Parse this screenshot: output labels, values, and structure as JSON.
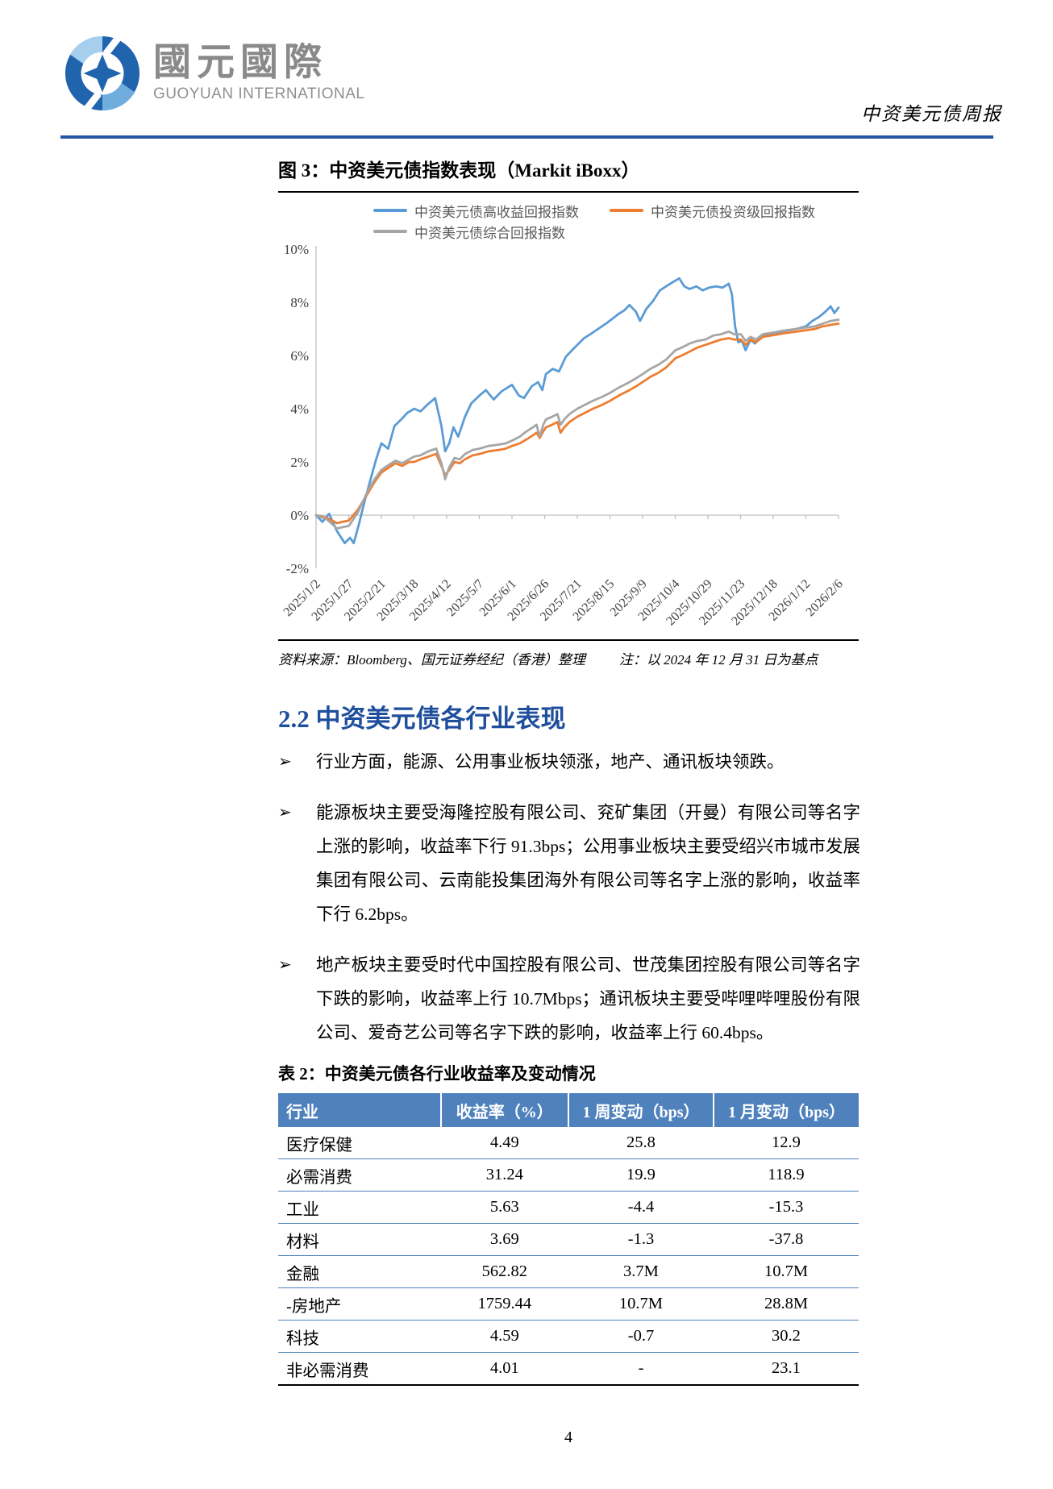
{
  "header": {
    "logo_cn": "國元國際",
    "logo_en": "GUOYUAN INTERNATIONAL",
    "report_title": "中资美元债周报"
  },
  "figure": {
    "title": "图 3：中资美元债指数表现（Markit iBoxx）",
    "source_note": "资料来源：Bloomberg、国元证券经纪（香港）整理",
    "base_note": "注：以 2024 年 12 月 31 日为基点"
  },
  "chart_data": {
    "type": "line",
    "title": "中资美元债指数表现（Markit iBoxx）",
    "ylim": [
      -2,
      10
    ],
    "y_tick_labels": [
      "10%",
      "8%",
      "6%",
      "4%",
      "2%",
      "0%",
      "-2%"
    ],
    "x_tick_labels": [
      "2025/1/2",
      "2025/1/27",
      "2025/2/21",
      "2025/3/18",
      "2025/4/12",
      "2025/5/7",
      "2025/6/1",
      "2025/6/26",
      "2025/7/21",
      "2025/8/15",
      "2025/9/9",
      "2025/10/4",
      "2025/10/29",
      "2025/11/23",
      "2025/12/18",
      "2026/1/12",
      "2026/2/6"
    ],
    "grid": false,
    "legend_position": "top",
    "series": [
      {
        "name": "中资美元债高收益回报指数",
        "color": "#5B9BD5",
        "points": [
          [
            0,
            0
          ],
          [
            0.012,
            -0.25
          ],
          [
            0.025,
            0.05
          ],
          [
            0.04,
            -0.6
          ],
          [
            0.055,
            -1.05
          ],
          [
            0.065,
            -0.85
          ],
          [
            0.072,
            -1.05
          ],
          [
            0.082,
            -0.35
          ],
          [
            0.092,
            0.45
          ],
          [
            0.103,
            1.25
          ],
          [
            0.115,
            2.1
          ],
          [
            0.125,
            2.7
          ],
          [
            0.138,
            2.5
          ],
          [
            0.15,
            3.35
          ],
          [
            0.163,
            3.6
          ],
          [
            0.175,
            3.85
          ],
          [
            0.188,
            4.0
          ],
          [
            0.2,
            3.9
          ],
          [
            0.213,
            4.15
          ],
          [
            0.228,
            4.4
          ],
          [
            0.24,
            3.35
          ],
          [
            0.247,
            2.4
          ],
          [
            0.255,
            2.7
          ],
          [
            0.263,
            3.3
          ],
          [
            0.272,
            2.95
          ],
          [
            0.285,
            3.7
          ],
          [
            0.297,
            4.2
          ],
          [
            0.313,
            4.5
          ],
          [
            0.325,
            4.7
          ],
          [
            0.34,
            4.35
          ],
          [
            0.355,
            4.65
          ],
          [
            0.375,
            4.9
          ],
          [
            0.388,
            4.5
          ],
          [
            0.398,
            4.4
          ],
          [
            0.413,
            4.85
          ],
          [
            0.425,
            5.0
          ],
          [
            0.433,
            4.7
          ],
          [
            0.44,
            5.3
          ],
          [
            0.453,
            5.5
          ],
          [
            0.465,
            5.4
          ],
          [
            0.478,
            5.95
          ],
          [
            0.49,
            6.2
          ],
          [
            0.5,
            6.4
          ],
          [
            0.513,
            6.65
          ],
          [
            0.525,
            6.8
          ],
          [
            0.54,
            7.0
          ],
          [
            0.555,
            7.2
          ],
          [
            0.565,
            7.35
          ],
          [
            0.578,
            7.55
          ],
          [
            0.59,
            7.7
          ],
          [
            0.6,
            7.9
          ],
          [
            0.612,
            7.65
          ],
          [
            0.62,
            7.3
          ],
          [
            0.632,
            7.75
          ],
          [
            0.645,
            8.05
          ],
          [
            0.658,
            8.45
          ],
          [
            0.67,
            8.6
          ],
          [
            0.682,
            8.75
          ],
          [
            0.695,
            8.9
          ],
          [
            0.705,
            8.6
          ],
          [
            0.715,
            8.5
          ],
          [
            0.728,
            8.6
          ],
          [
            0.74,
            8.45
          ],
          [
            0.752,
            8.55
          ],
          [
            0.765,
            8.6
          ],
          [
            0.778,
            8.55
          ],
          [
            0.79,
            8.7
          ],
          [
            0.796,
            8.3
          ],
          [
            0.802,
            7.1
          ],
          [
            0.808,
            6.5
          ],
          [
            0.815,
            6.55
          ],
          [
            0.822,
            6.2
          ],
          [
            0.832,
            6.6
          ],
          [
            0.84,
            6.45
          ],
          [
            0.85,
            6.7
          ],
          [
            0.862,
            6.8
          ],
          [
            0.875,
            6.8
          ],
          [
            0.89,
            6.9
          ],
          [
            0.905,
            6.95
          ],
          [
            0.92,
            7.0
          ],
          [
            0.938,
            7.1
          ],
          [
            0.95,
            7.3
          ],
          [
            0.963,
            7.45
          ],
          [
            0.975,
            7.65
          ],
          [
            0.985,
            7.85
          ],
          [
            0.992,
            7.6
          ],
          [
            1,
            7.8
          ]
        ]
      },
      {
        "name": "中资美元债投资级回报指数",
        "color": "#ED7D31",
        "points": [
          [
            0,
            0
          ],
          [
            0.02,
            -0.1
          ],
          [
            0.04,
            -0.3
          ],
          [
            0.063,
            -0.2
          ],
          [
            0.08,
            0.2
          ],
          [
            0.1,
            0.85
          ],
          [
            0.112,
            1.25
          ],
          [
            0.125,
            1.6
          ],
          [
            0.14,
            1.8
          ],
          [
            0.152,
            1.95
          ],
          [
            0.165,
            1.85
          ],
          [
            0.178,
            2.0
          ],
          [
            0.188,
            2.0
          ],
          [
            0.2,
            2.1
          ],
          [
            0.215,
            2.2
          ],
          [
            0.23,
            2.3
          ],
          [
            0.24,
            1.85
          ],
          [
            0.247,
            1.5
          ],
          [
            0.255,
            1.7
          ],
          [
            0.265,
            2.0
          ],
          [
            0.275,
            1.95
          ],
          [
            0.285,
            2.1
          ],
          [
            0.3,
            2.25
          ],
          [
            0.313,
            2.3
          ],
          [
            0.33,
            2.4
          ],
          [
            0.35,
            2.45
          ],
          [
            0.363,
            2.5
          ],
          [
            0.375,
            2.6
          ],
          [
            0.39,
            2.7
          ],
          [
            0.403,
            2.85
          ],
          [
            0.415,
            3.0
          ],
          [
            0.422,
            3.1
          ],
          [
            0.428,
            2.9
          ],
          [
            0.435,
            3.15
          ],
          [
            0.44,
            3.3
          ],
          [
            0.452,
            3.4
          ],
          [
            0.462,
            3.5
          ],
          [
            0.468,
            3.1
          ],
          [
            0.475,
            3.3
          ],
          [
            0.485,
            3.5
          ],
          [
            0.5,
            3.7
          ],
          [
            0.515,
            3.85
          ],
          [
            0.53,
            4.0
          ],
          [
            0.548,
            4.15
          ],
          [
            0.563,
            4.3
          ],
          [
            0.58,
            4.5
          ],
          [
            0.6,
            4.7
          ],
          [
            0.613,
            4.85
          ],
          [
            0.625,
            5.0
          ],
          [
            0.64,
            5.2
          ],
          [
            0.655,
            5.35
          ],
          [
            0.67,
            5.55
          ],
          [
            0.688,
            5.9
          ],
          [
            0.7,
            6.0
          ],
          [
            0.715,
            6.15
          ],
          [
            0.73,
            6.3
          ],
          [
            0.745,
            6.4
          ],
          [
            0.76,
            6.5
          ],
          [
            0.775,
            6.6
          ],
          [
            0.79,
            6.65
          ],
          [
            0.8,
            6.6
          ],
          [
            0.813,
            6.6
          ],
          [
            0.822,
            6.4
          ],
          [
            0.832,
            6.6
          ],
          [
            0.842,
            6.5
          ],
          [
            0.855,
            6.7
          ],
          [
            0.87,
            6.75
          ],
          [
            0.885,
            6.8
          ],
          [
            0.9,
            6.85
          ],
          [
            0.92,
            6.9
          ],
          [
            0.938,
            6.95
          ],
          [
            0.955,
            7.0
          ],
          [
            0.97,
            7.1
          ],
          [
            0.985,
            7.15
          ],
          [
            1,
            7.2
          ]
        ]
      },
      {
        "name": "中资美元债综合回报指数",
        "color": "#A6A6A6",
        "points": [
          [
            0,
            0
          ],
          [
            0.02,
            -0.15
          ],
          [
            0.04,
            -0.5
          ],
          [
            0.063,
            -0.4
          ],
          [
            0.08,
            0.1
          ],
          [
            0.1,
            0.95
          ],
          [
            0.112,
            1.35
          ],
          [
            0.125,
            1.7
          ],
          [
            0.14,
            1.9
          ],
          [
            0.152,
            2.05
          ],
          [
            0.165,
            1.95
          ],
          [
            0.178,
            2.1
          ],
          [
            0.188,
            2.2
          ],
          [
            0.2,
            2.25
          ],
          [
            0.215,
            2.4
          ],
          [
            0.23,
            2.5
          ],
          [
            0.24,
            1.95
          ],
          [
            0.247,
            1.35
          ],
          [
            0.255,
            1.8
          ],
          [
            0.265,
            2.15
          ],
          [
            0.275,
            2.1
          ],
          [
            0.285,
            2.3
          ],
          [
            0.3,
            2.45
          ],
          [
            0.313,
            2.5
          ],
          [
            0.33,
            2.6
          ],
          [
            0.35,
            2.65
          ],
          [
            0.363,
            2.7
          ],
          [
            0.375,
            2.8
          ],
          [
            0.39,
            2.95
          ],
          [
            0.403,
            3.15
          ],
          [
            0.415,
            3.3
          ],
          [
            0.422,
            3.4
          ],
          [
            0.428,
            2.95
          ],
          [
            0.435,
            3.4
          ],
          [
            0.44,
            3.6
          ],
          [
            0.452,
            3.7
          ],
          [
            0.462,
            3.8
          ],
          [
            0.468,
            3.4
          ],
          [
            0.475,
            3.6
          ],
          [
            0.485,
            3.8
          ],
          [
            0.5,
            4.0
          ],
          [
            0.515,
            4.15
          ],
          [
            0.53,
            4.3
          ],
          [
            0.548,
            4.45
          ],
          [
            0.563,
            4.6
          ],
          [
            0.58,
            4.8
          ],
          [
            0.6,
            5.0
          ],
          [
            0.613,
            5.15
          ],
          [
            0.625,
            5.3
          ],
          [
            0.64,
            5.5
          ],
          [
            0.655,
            5.65
          ],
          [
            0.67,
            5.85
          ],
          [
            0.688,
            6.2
          ],
          [
            0.7,
            6.3
          ],
          [
            0.715,
            6.45
          ],
          [
            0.73,
            6.55
          ],
          [
            0.745,
            6.6
          ],
          [
            0.76,
            6.75
          ],
          [
            0.775,
            6.8
          ],
          [
            0.79,
            6.9
          ],
          [
            0.8,
            6.8
          ],
          [
            0.813,
            6.8
          ],
          [
            0.822,
            6.55
          ],
          [
            0.832,
            6.7
          ],
          [
            0.842,
            6.6
          ],
          [
            0.855,
            6.8
          ],
          [
            0.87,
            6.85
          ],
          [
            0.885,
            6.9
          ],
          [
            0.9,
            6.95
          ],
          [
            0.92,
            7.0
          ],
          [
            0.938,
            7.05
          ],
          [
            0.955,
            7.1
          ],
          [
            0.97,
            7.2
          ],
          [
            0.985,
            7.3
          ],
          [
            1,
            7.35
          ]
        ]
      }
    ]
  },
  "section": {
    "heading": "2.2 中资美元债各行业表现",
    "bullet_marker": "➢",
    "bullets": [
      "行业方面，能源、公用事业板块领涨，地产、通讯板块领跌。",
      "能源板块主要受海隆控股有限公司、兖矿集团（开曼）有限公司等名字上涨的影响，收益率下行 91.3bps；公用事业板块主要受绍兴市城市发展集团有限公司、云南能投集团海外有限公司等名字上涨的影响，收益率下行 6.2bps。",
      "地产板块主要受时代中国控股有限公司、世茂集团控股有限公司等名字下跌的影响，收益率上行 10.7Mbps；通讯板块主要受哔哩哔哩股份有限公司、爱奇艺公司等名字下跌的影响，收益率上行 60.4bps。"
    ]
  },
  "industry_table": {
    "title": "表 2：中资美元债各行业收益率及变动情况",
    "headers": [
      "行业",
      "收益率（%）",
      "1 周变动（bps）",
      "1 月变动（bps）"
    ],
    "rows": [
      [
        "医疗保健",
        "4.49",
        "25.8",
        "12.9"
      ],
      [
        "必需消费",
        "31.24",
        "19.9",
        "118.9"
      ],
      [
        "工业",
        "5.63",
        "-4.4",
        "-15.3"
      ],
      [
        "材料",
        "3.69",
        "-1.3",
        "-37.8"
      ],
      [
        "金融",
        "562.82",
        "3.7M",
        "10.7M"
      ],
      [
        "-房地产",
        "1759.44",
        "10.7M",
        "28.8M"
      ],
      [
        "科技",
        "4.59",
        "-0.7",
        "30.2"
      ],
      [
        "非必需消费",
        "4.01",
        "-",
        "23.1"
      ]
    ]
  },
  "footer": {
    "page_number": "4"
  },
  "colors": {
    "header_rule": "#2456A4",
    "heading_blue": "#1F4E9C",
    "table_header_bg": "#4F81BD",
    "table_row_border": "#4F81BD",
    "high_yield_line": "#5B9BD5",
    "investment_grade_line": "#ED7D31",
    "composite_line": "#A6A6A6"
  }
}
